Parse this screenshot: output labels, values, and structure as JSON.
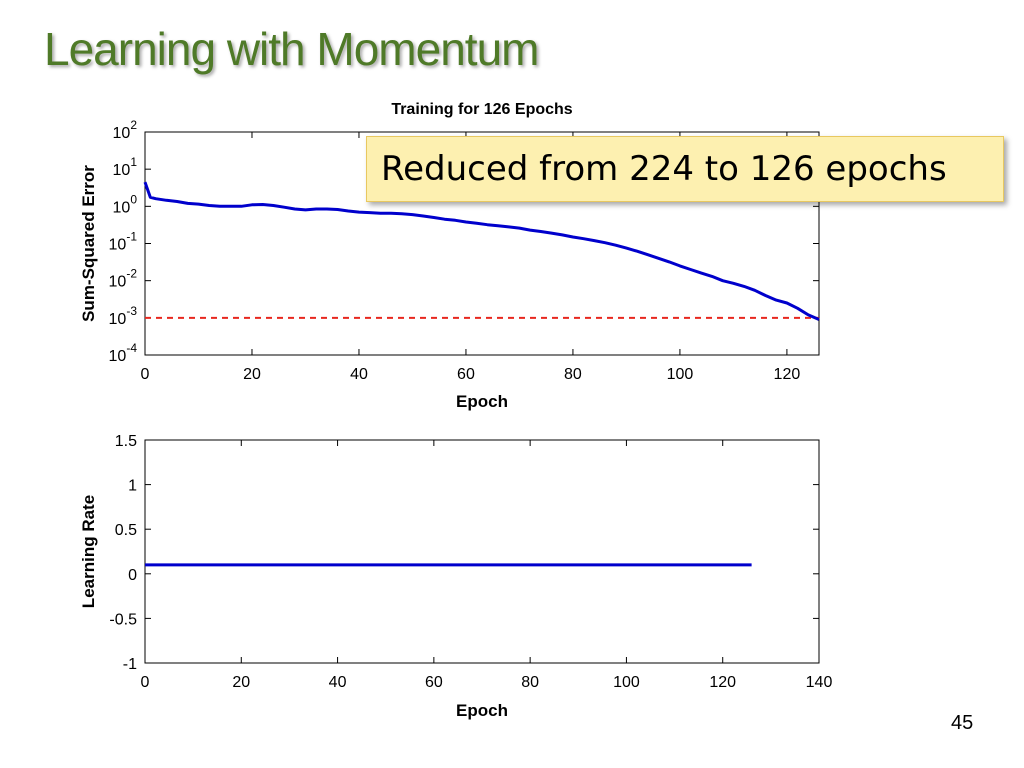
{
  "slide": {
    "title": "Learning with Momentum",
    "callout": "Reduced from 224 to 126 epochs",
    "page_number": "45"
  },
  "colors": {
    "title": "#4f7a28",
    "series": "#0000cc",
    "goal": "#e8271f",
    "callout_bg": "#fdf0b0"
  },
  "chart_data": [
    {
      "type": "line",
      "title": "Training for 126 Epochs",
      "xlabel": "Epoch",
      "ylabel": "Sum-Squared Error",
      "yscale": "log",
      "xlim": [
        0,
        126
      ],
      "ylim": [
        0.0001,
        100
      ],
      "xticks": [
        0,
        20,
        40,
        60,
        80,
        100,
        120
      ],
      "yticks": [
        {
          "value": 0.0001,
          "base": "10",
          "exp": "-4"
        },
        {
          "value": 0.001,
          "base": "10",
          "exp": "-3"
        },
        {
          "value": 0.01,
          "base": "10",
          "exp": "-2"
        },
        {
          "value": 0.1,
          "base": "10",
          "exp": "-1"
        },
        {
          "value": 1,
          "base": "10",
          "exp": "0"
        },
        {
          "value": 10,
          "base": "10",
          "exp": "1"
        },
        {
          "value": 100,
          "base": "10",
          "exp": "2"
        }
      ],
      "series": [
        {
          "values_x": [
            0,
            1,
            2,
            4,
            6,
            8,
            10,
            12,
            14,
            16,
            18,
            20,
            22,
            24,
            26,
            28,
            30,
            32,
            34,
            36,
            38,
            40,
            42,
            44,
            46,
            48,
            50,
            52,
            54,
            56,
            58,
            60,
            62,
            64,
            66,
            68,
            70,
            72,
            74,
            76,
            78,
            80,
            82,
            84,
            86,
            88,
            90,
            92,
            94,
            96,
            98,
            100,
            102,
            104,
            106,
            108,
            110,
            112,
            114,
            116,
            118,
            120,
            122,
            124,
            126
          ],
          "values_y": [
            4.5,
            1.75,
            1.6,
            1.45,
            1.35,
            1.2,
            1.15,
            1.05,
            1.0,
            1.0,
            1.0,
            1.1,
            1.12,
            1.05,
            0.95,
            0.85,
            0.8,
            0.85,
            0.85,
            0.82,
            0.75,
            0.7,
            0.68,
            0.65,
            0.65,
            0.63,
            0.6,
            0.55,
            0.5,
            0.45,
            0.42,
            0.38,
            0.35,
            0.32,
            0.3,
            0.28,
            0.26,
            0.23,
            0.21,
            0.19,
            0.17,
            0.15,
            0.135,
            0.12,
            0.105,
            0.09,
            0.075,
            0.062,
            0.05,
            0.04,
            0.032,
            0.025,
            0.02,
            0.016,
            0.013,
            0.01,
            0.0085,
            0.007,
            0.0055,
            0.004,
            0.003,
            0.0025,
            0.0018,
            0.0012,
            0.0009
          ]
        }
      ],
      "goal_line": 0.001
    },
    {
      "type": "line",
      "title": "",
      "xlabel": "Epoch",
      "ylabel": "Learning Rate",
      "xlim": [
        0,
        140
      ],
      "ylim": [
        -1,
        1.5
      ],
      "xticks": [
        0,
        20,
        40,
        60,
        80,
        100,
        120,
        140
      ],
      "yticks": [
        -1,
        -0.5,
        0,
        0.5,
        1,
        1.5
      ],
      "ytick_labels": [
        "-1",
        "-0.5",
        "0",
        "0.5",
        "1",
        "1.5"
      ],
      "series": [
        {
          "values_x": [
            0,
            126
          ],
          "values_y": [
            0.1,
            0.1
          ]
        }
      ]
    }
  ]
}
